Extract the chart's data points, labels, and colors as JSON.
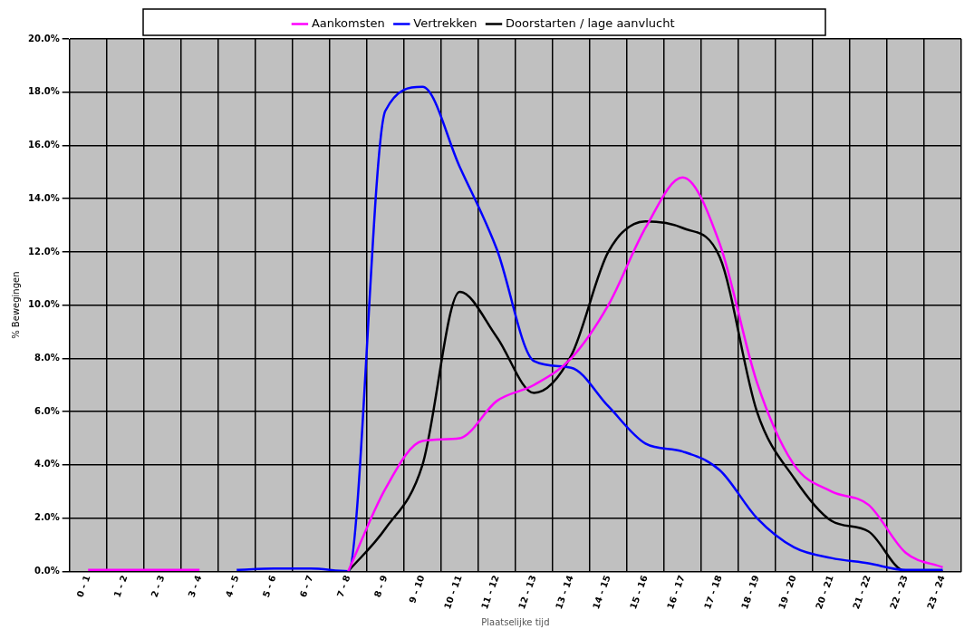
{
  "chart_data": {
    "type": "line",
    "xlabel": "Plaatselijke tijd",
    "ylabel": "% Bewegingen",
    "categories": [
      "0 - 1",
      "1 - 2",
      "2 - 3",
      "3 - 4",
      "4 - 5",
      "5 - 6",
      "6 - 7",
      "7 - 8",
      "8 - 9",
      "9 - 10",
      "10 - 11",
      "11 - 12",
      "12 - 13",
      "13 - 14",
      "14 - 15",
      "15 - 16",
      "16 - 17",
      "17 - 18",
      "18 - 19",
      "19 - 20",
      "20 - 21",
      "21 - 22",
      "22 - 23",
      "23 - 24"
    ],
    "series": [
      {
        "name": "Aankomsten",
        "color": "#ff00ff",
        "values": [
          0.05,
          0.05,
          0.05,
          0.05,
          null,
          null,
          null,
          0,
          3.1,
          4.9,
          5.0,
          6.4,
          7.0,
          8.0,
          10.0,
          12.9,
          14.8,
          12.3,
          7.1,
          4.0,
          3.0,
          2.5,
          0.7,
          0.15
        ]
      },
      {
        "name": "Vertrekken",
        "color": "#0000ff",
        "values": [
          null,
          null,
          null,
          null,
          0.05,
          0.1,
          0.1,
          0,
          17.3,
          18.2,
          15.2,
          12.1,
          7.9,
          7.65,
          6.2,
          4.8,
          4.5,
          3.8,
          2.0,
          0.9,
          0.5,
          0.3,
          0.05,
          0.05
        ]
      },
      {
        "name": "Doorstarten / lage aanvlucht",
        "color": "#000000",
        "values": [
          null,
          null,
          null,
          null,
          null,
          null,
          null,
          0,
          1.6,
          4.0,
          10.5,
          8.8,
          6.7,
          8.1,
          12.0,
          13.15,
          12.9,
          11.8,
          6.0,
          3.5,
          1.9,
          1.5,
          0,
          0
        ]
      }
    ],
    "ylim": [
      0,
      20
    ],
    "yticks": [
      {
        "value": 0,
        "label": "0.0%"
      },
      {
        "value": 2,
        "label": "2.0%"
      },
      {
        "value": 4,
        "label": "4.0%"
      },
      {
        "value": 6,
        "label": "6.0%"
      },
      {
        "value": 8,
        "label": "8.0%"
      },
      {
        "value": 10,
        "label": "10.0%"
      },
      {
        "value": 12,
        "label": "12.0%"
      },
      {
        "value": 14,
        "label": "14.0%"
      },
      {
        "value": 16,
        "label": "16.0%"
      },
      {
        "value": 18,
        "label": "18.0%"
      },
      {
        "value": 20,
        "label": "20.0%"
      }
    ],
    "grid": true,
    "legend": "top",
    "marker": "none",
    "line_style": "solid"
  }
}
